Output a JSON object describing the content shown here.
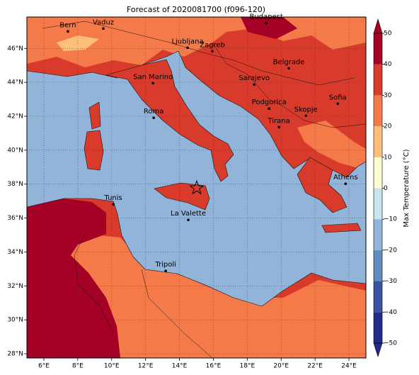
{
  "chart_data": {
    "type": "map",
    "title": "Forecast of 2020081700 (f096-120)",
    "xlim": [
      5,
      25
    ],
    "ylim": [
      27.75,
      47.85
    ],
    "xticks": [
      {
        "value": 6,
        "label": "6°E"
      },
      {
        "value": 8,
        "label": "8°E"
      },
      {
        "value": 10,
        "label": "10°E"
      },
      {
        "value": 12,
        "label": "12°E"
      },
      {
        "value": 14,
        "label": "14°E"
      },
      {
        "value": 16,
        "label": "16°E"
      },
      {
        "value": 18,
        "label": "18°E"
      },
      {
        "value": 20,
        "label": "20°E"
      },
      {
        "value": 22,
        "label": "22°E"
      },
      {
        "value": 24,
        "label": "24°E"
      }
    ],
    "yticks": [
      {
        "value": 28,
        "label": "28°N"
      },
      {
        "value": 30,
        "label": "30°N"
      },
      {
        "value": 32,
        "label": "32°N"
      },
      {
        "value": 34,
        "label": "34°N"
      },
      {
        "value": 36,
        "label": "36°N"
      },
      {
        "value": 38,
        "label": "38°N"
      },
      {
        "value": 40,
        "label": "40°N"
      },
      {
        "value": 42,
        "label": "42°N"
      },
      {
        "value": 44,
        "label": "44°N"
      },
      {
        "value": 46,
        "label": "46°N"
      }
    ],
    "grid": true,
    "cities": [
      {
        "name": "Bern",
        "lon": 7.42,
        "lat": 47.0
      },
      {
        "name": "Vaduz",
        "lon": 9.51,
        "lat": 47.17
      },
      {
        "name": "Budapest",
        "lon": 19.12,
        "lat": 47.5
      },
      {
        "name": "Ljubljana",
        "lon": 14.48,
        "lat": 46.04
      },
      {
        "name": "Zagreb",
        "lon": 15.94,
        "lat": 45.83
      },
      {
        "name": "Belgrade",
        "lon": 20.45,
        "lat": 44.83
      },
      {
        "name": "San Marino",
        "lon": 12.44,
        "lat": 43.95
      },
      {
        "name": "Sarajevo",
        "lon": 18.41,
        "lat": 43.87
      },
      {
        "name": "Sofia",
        "lon": 23.34,
        "lat": 42.74
      },
      {
        "name": "Podgorica",
        "lon": 19.29,
        "lat": 42.45
      },
      {
        "name": "Skopje",
        "lon": 21.46,
        "lat": 42.03
      },
      {
        "name": "Roma",
        "lon": 12.48,
        "lat": 41.91
      },
      {
        "name": "Tirana",
        "lon": 19.87,
        "lat": 41.36
      },
      {
        "name": "Athens",
        "lon": 23.8,
        "lat": 38.02
      },
      {
        "name": "Tunis",
        "lon": 10.1,
        "lat": 36.81
      },
      {
        "name": "La Valette",
        "lon": 14.52,
        "lat": 35.89
      },
      {
        "name": "Tripoli",
        "lon": 13.19,
        "lat": 32.88
      }
    ],
    "marker": {
      "lon": 15.02,
      "lat": 37.77
    },
    "colorbar": {
      "label": "Max Temperature (°C)",
      "lim": [
        -50,
        50
      ],
      "ticks": [
        {
          "value": -50,
          "label": "−50"
        },
        {
          "value": -40,
          "label": "−40"
        },
        {
          "value": -30,
          "label": "−30"
        },
        {
          "value": -20,
          "label": "−20"
        },
        {
          "value": -10,
          "label": "−10"
        },
        0,
        10,
        20,
        30,
        40,
        50
      ],
      "colors": [
        "#232a8a",
        "#3a54a4",
        "#628bc0",
        "#91b4d8",
        "#c9e4ef",
        "#fdfbd0",
        "#fdbf7b",
        "#f57a4a",
        "#d83a2b",
        "#a50026"
      ]
    }
  }
}
